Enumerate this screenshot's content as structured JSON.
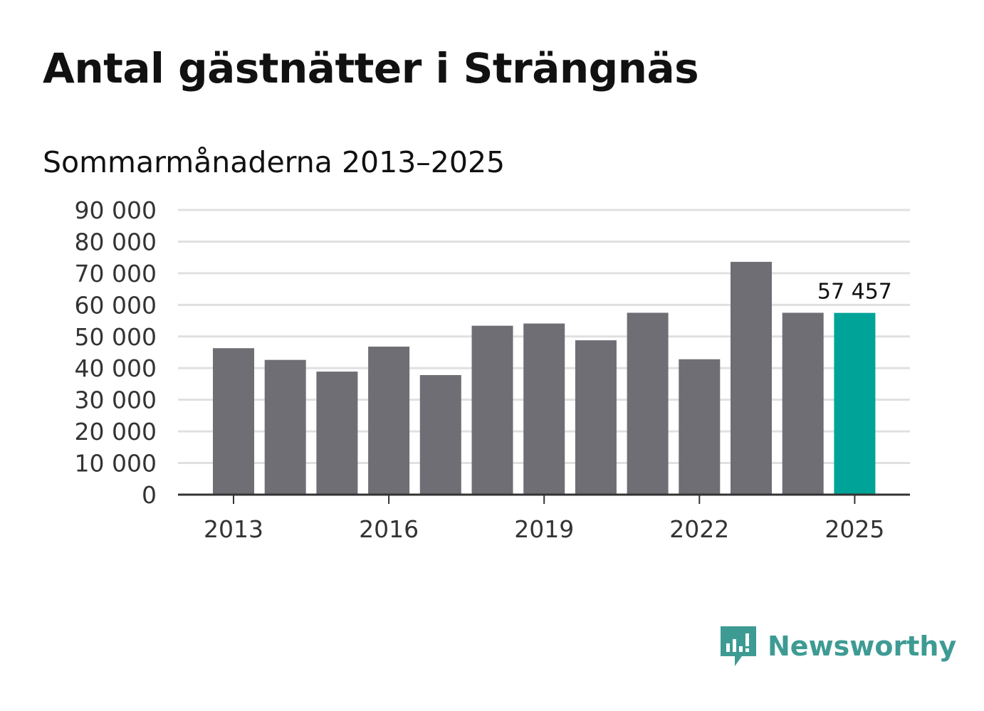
{
  "header": {
    "title": "Antal gästnätter i Strängnäs",
    "subtitle": "Sommarmånaderna 2013–2025"
  },
  "chart_data": {
    "type": "bar",
    "categories": [
      "2013",
      "2014",
      "2015",
      "2016",
      "2017",
      "2018",
      "2019",
      "2020",
      "2021",
      "2022",
      "2023",
      "2024",
      "2025"
    ],
    "values": [
      46300,
      42600,
      38900,
      46800,
      37800,
      53400,
      54100,
      48800,
      57500,
      42800,
      73600,
      57500,
      57457
    ],
    "highlight_index": 12,
    "highlight_label": "57 457",
    "x_tick_labels": [
      "2013",
      "2016",
      "2019",
      "2022",
      "2025"
    ],
    "y_ticks": [
      0,
      10000,
      20000,
      30000,
      40000,
      50000,
      60000,
      70000,
      80000,
      90000
    ],
    "y_tick_labels": [
      "0",
      "10 000",
      "20 000",
      "30 000",
      "40 000",
      "50 000",
      "60 000",
      "70 000",
      "80 000",
      "90 000"
    ],
    "ylim": [
      0,
      90000
    ],
    "grid": true,
    "colors": {
      "bar": "#6f6e74",
      "highlight": "#00a398",
      "grid": "#e0e0e0",
      "axis": "#333333"
    }
  },
  "brand": {
    "name": "Newsworthy",
    "icon": "chat-bar-chart-icon",
    "color": "#3e9b94"
  }
}
